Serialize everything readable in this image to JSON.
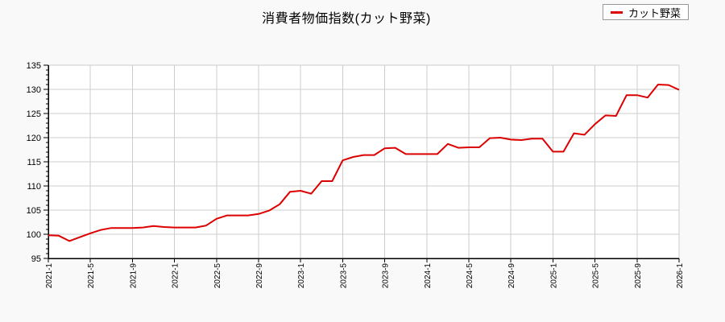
{
  "title": "消費者物価指数(カット野菜)",
  "legend": {
    "label": "カット野菜",
    "line_color": "#dd0000"
  },
  "chart_data": {
    "type": "line",
    "title": "消費者物価指数(カット野菜)",
    "xlabel": "",
    "ylabel": "",
    "ylim": [
      95,
      135
    ],
    "grid": true,
    "legend_position": "top-right",
    "colors": {
      "line": "#dd0000",
      "grid": "#cccccc",
      "axis": "#000000",
      "plot_bg": "#ffffff",
      "page_bg": "#f9f9f9",
      "tick_text": "#000000"
    },
    "yticks": [
      95,
      100,
      105,
      110,
      115,
      120,
      125,
      130,
      135
    ],
    "xticks": [
      "2021-1",
      "2021-5",
      "2021-9",
      "2022-1",
      "2022-5",
      "2022-9",
      "2023-1",
      "2023-5",
      "2023-9",
      "2024-1",
      "2024-5",
      "2024-9",
      "2025-1",
      "2025-5",
      "2025-9",
      "2026-1"
    ],
    "series": [
      {
        "name": "カット野菜",
        "color": "#dd0000",
        "x": [
          "2021-1",
          "2021-2",
          "2021-3",
          "2021-4",
          "2021-5",
          "2021-6",
          "2021-7",
          "2021-8",
          "2021-9",
          "2021-10",
          "2021-11",
          "2021-12",
          "2022-1",
          "2022-2",
          "2022-3",
          "2022-4",
          "2022-5",
          "2022-6",
          "2022-7",
          "2022-8",
          "2022-9",
          "2022-10",
          "2022-11",
          "2022-12",
          "2023-1",
          "2023-2",
          "2023-3",
          "2023-4",
          "2023-5",
          "2023-6",
          "2023-7",
          "2023-8",
          "2023-9",
          "2023-10",
          "2023-11",
          "2023-12",
          "2024-1",
          "2024-2",
          "2024-3",
          "2024-4",
          "2024-5",
          "2024-6",
          "2024-7",
          "2024-8",
          "2024-9",
          "2024-10",
          "2024-11",
          "2024-12",
          "2025-1",
          "2025-2",
          "2025-3",
          "2025-4",
          "2025-5",
          "2025-6",
          "2025-7",
          "2025-8",
          "2025-9",
          "2025-10",
          "2025-11",
          "2025-12",
          "2026-1"
        ],
        "values": [
          99.8,
          99.7,
          98.6,
          99.4,
          100.2,
          100.9,
          101.3,
          101.3,
          101.3,
          101.4,
          101.7,
          101.5,
          101.4,
          101.4,
          101.4,
          101.8,
          103.2,
          103.9,
          103.9,
          103.9,
          104.2,
          104.9,
          106.2,
          108.8,
          109.0,
          108.4,
          111.0,
          111.0,
          115.3,
          116.0,
          116.4,
          116.4,
          117.8,
          117.9,
          116.6,
          116.6,
          116.6,
          116.6,
          118.7,
          117.9,
          118.0,
          118.0,
          119.9,
          120.0,
          119.6,
          119.5,
          119.8,
          119.8,
          117.1,
          117.1,
          120.9,
          120.6,
          122.8,
          124.6,
          124.5,
          128.8,
          128.8,
          128.3,
          131.0,
          130.9,
          129.9
        ]
      }
    ]
  }
}
